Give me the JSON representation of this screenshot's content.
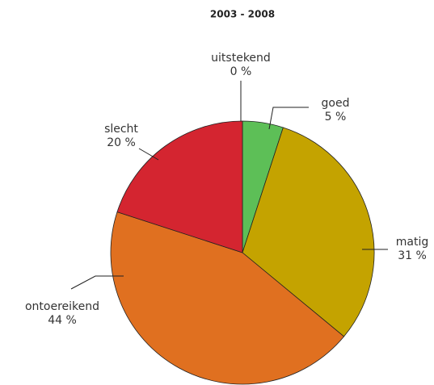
{
  "chart_data": {
    "type": "pie",
    "title": "2003 - 2008",
    "categories": [
      "uitstekend",
      "goed",
      "matig",
      "ontoereikend",
      "slecht"
    ],
    "values": [
      0,
      5,
      31,
      44,
      20
    ],
    "value_labels": [
      "0 %",
      "5 %",
      "31 %",
      "44 %",
      "20 %"
    ],
    "colors": [
      null,
      "#5dbf57",
      "#c4a300",
      "#e07020",
      "#d42530"
    ]
  }
}
